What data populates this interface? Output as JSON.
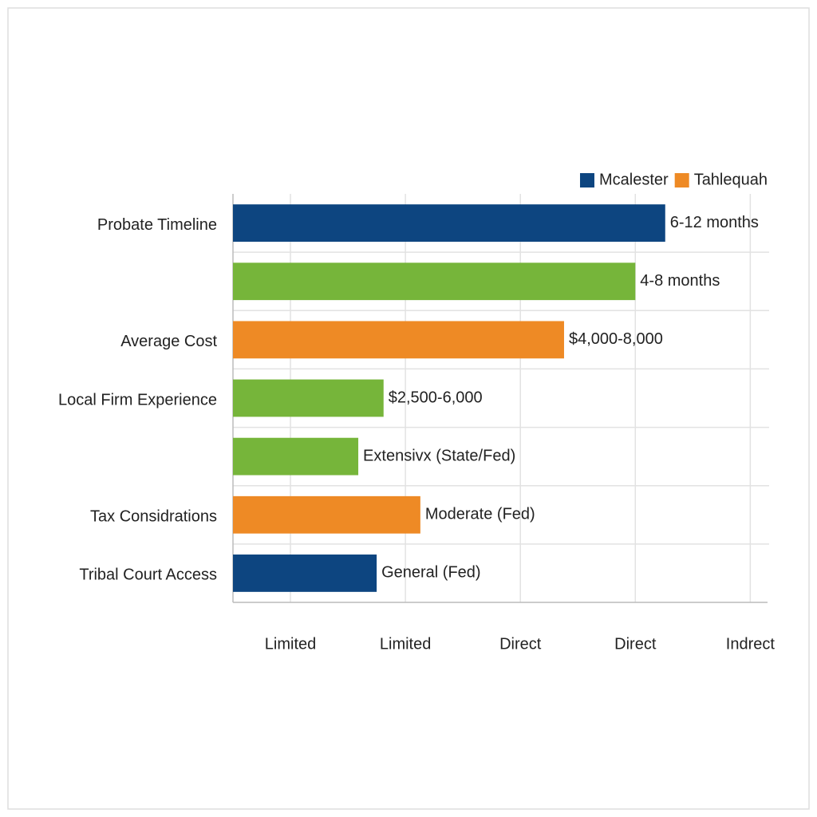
{
  "chart_data": {
    "type": "hbar",
    "categories": [
      "Probate Timeline",
      null,
      "Average Cost",
      "Local Firm Experience",
      null,
      "Tax Considrations",
      "Tribal Court Access"
    ],
    "values": [
      4.26,
      4.0,
      3.38,
      1.81,
      1.59,
      2.13,
      1.75
    ],
    "colors": [
      "#0d4580",
      "#76b53a",
      "#ee8a25",
      "#76b53a",
      "#76b53a",
      "#ee8a25",
      "#0d4580"
    ],
    "annotations": [
      "6-12 months",
      "4-8 months",
      "$4,000-8,000",
      "$2,500-6,000",
      "Extensivx (State/Fed)",
      "Moderate (Fed)",
      "General (Fed)"
    ],
    "xlim": [
      0.5,
      5.15
    ],
    "xticks": [
      {
        "value": 1,
        "label": "Limited"
      },
      {
        "value": 2,
        "label": "Limited"
      },
      {
        "value": 3,
        "label": "Direct"
      },
      {
        "value": 4,
        "label": "Direct"
      },
      {
        "value": 5,
        "label": "Indrect"
      }
    ],
    "grid": true,
    "legend": [
      {
        "name": "Mcalester",
        "color": "#0d4580"
      },
      {
        "name": "Tahlequah",
        "color": "#ee8a25"
      }
    ]
  }
}
